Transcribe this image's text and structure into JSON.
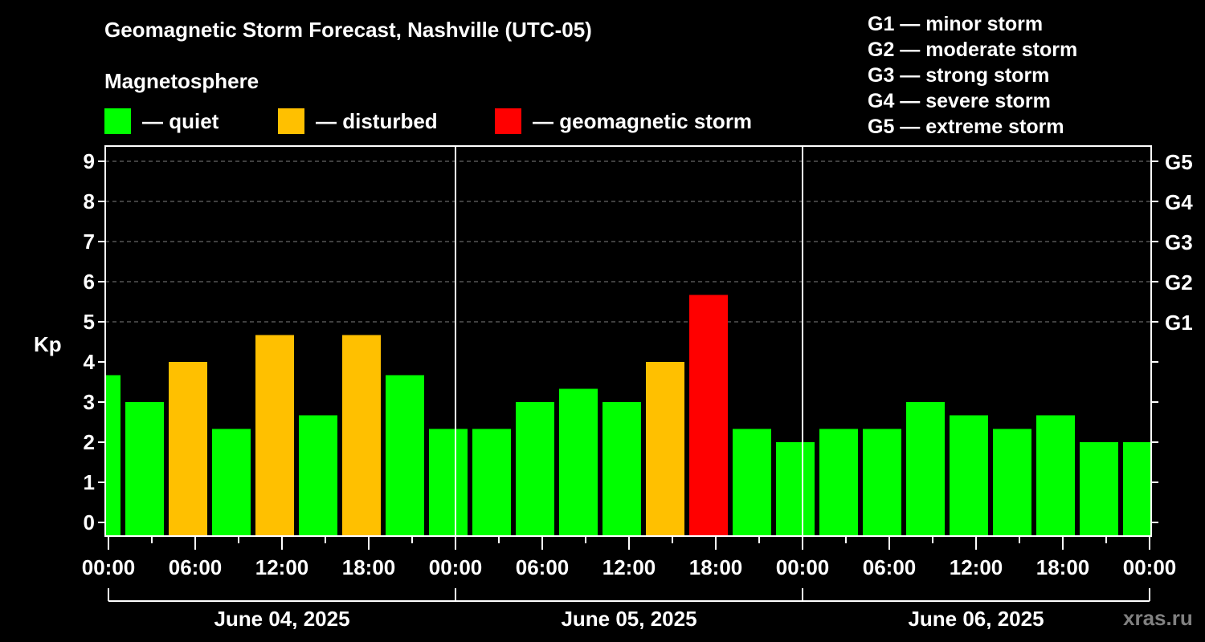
{
  "header": {
    "title": "Geomagnetic Storm Forecast, Nashville (UTC-05)",
    "subtitle": "Magnetosphere"
  },
  "legend": [
    {
      "label": "— quiet",
      "color": "#00ff00"
    },
    {
      "label": "— disturbed",
      "color": "#ffc000"
    },
    {
      "label": "— geomagnetic storm",
      "color": "#ff0000"
    }
  ],
  "g_scale": [
    "G1 — minor storm",
    "G2 — moderate storm",
    "G3 — strong storm",
    "G4 — severe storm",
    "G5 — extreme storm"
  ],
  "watermark": "xras.ru",
  "colors": {
    "quiet": "#00ff00",
    "disturbed": "#ffc000",
    "storm": "#ff0000",
    "grid": "#808080",
    "axis": "#ffffff"
  },
  "chart_data": {
    "type": "bar",
    "title": "Geomagnetic Storm Forecast, Nashville (UTC-05)",
    "ylabel": "Kp",
    "xlabel": "",
    "ylim": [
      0,
      9
    ],
    "yticks": [
      0,
      1,
      2,
      3,
      4,
      5,
      6,
      7,
      8,
      9
    ],
    "right_axis_labels": [
      {
        "kp": 5,
        "label": "G1"
      },
      {
        "kp": 6,
        "label": "G2"
      },
      {
        "kp": 7,
        "label": "G3"
      },
      {
        "kp": 8,
        "label": "G4"
      },
      {
        "kp": 9,
        "label": "G5"
      }
    ],
    "x_tick_labels": [
      "00:00",
      "06:00",
      "12:00",
      "18:00",
      "00:00",
      "06:00",
      "12:00",
      "18:00",
      "00:00",
      "06:00",
      "12:00",
      "18:00",
      "00:00"
    ],
    "dates": [
      "June 04, 2025",
      "June 05, 2025",
      "June 06, 2025"
    ],
    "grid": true,
    "bar_interval_hours": 3,
    "first_bar_center_hour": -0.5,
    "values": [
      3.67,
      3.0,
      4.0,
      2.33,
      4.67,
      2.67,
      4.67,
      3.67,
      2.33,
      2.33,
      3.0,
      3.33,
      3.0,
      4.0,
      5.67,
      2.33,
      2.0,
      2.33,
      2.33,
      3.0,
      2.67,
      2.33,
      2.67,
      2.0,
      2.0
    ],
    "status": [
      "quiet",
      "quiet",
      "disturbed",
      "quiet",
      "disturbed",
      "quiet",
      "disturbed",
      "quiet",
      "quiet",
      "quiet",
      "quiet",
      "quiet",
      "quiet",
      "disturbed",
      "storm",
      "quiet",
      "quiet",
      "quiet",
      "quiet",
      "quiet",
      "quiet",
      "quiet",
      "quiet",
      "quiet",
      "quiet"
    ]
  }
}
